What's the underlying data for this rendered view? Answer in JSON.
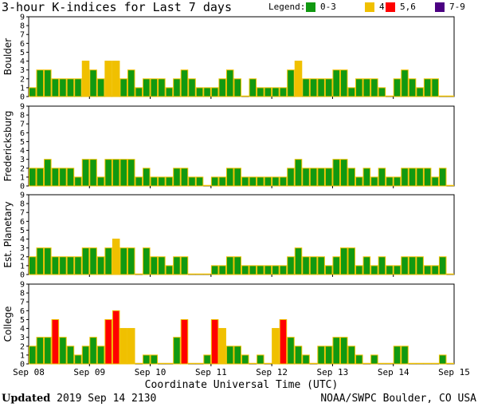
{
  "title": "3-hour K-indices for Last 7 days",
  "legend": {
    "label": "Legend:",
    "items": [
      {
        "label": "0-3",
        "color": "#119911"
      },
      {
        "label": "4",
        "color": "#f0c000"
      },
      {
        "label": "5,6",
        "color": "#ff0000"
      },
      {
        "label": "7-9",
        "color": "#4b0082"
      }
    ]
  },
  "xlabel": "Coordinate Universal Time (UTC)",
  "footer": {
    "updated_label": "Updated",
    "updated_value": "2019 Sep 14 2130",
    "source": "NOAA/SWPC Boulder, CO USA"
  },
  "chart_data": [
    {
      "type": "bar",
      "ylabel": "Boulder",
      "ylim": [
        0,
        9
      ],
      "yticks": [
        "0",
        "1",
        "2",
        "3",
        "4",
        "5",
        "6",
        "7",
        "8",
        "9"
      ],
      "x_tick_labels": [
        "Sep 08",
        "Sep 09",
        "Sep 10",
        "Sep 11",
        "Sep 12",
        "Sep 13",
        "Sep 14",
        "Sep 15"
      ],
      "values": [
        1,
        3,
        3,
        2,
        2,
        2,
        2,
        4,
        3,
        2,
        4,
        4,
        2,
        3,
        1,
        2,
        2,
        2,
        1,
        2,
        3,
        2,
        1,
        1,
        1,
        2,
        3,
        2,
        0,
        2,
        1,
        1,
        1,
        1,
        3,
        4,
        2,
        2,
        2,
        2,
        3,
        3,
        1,
        2,
        2,
        2,
        1,
        0,
        2,
        3,
        2,
        1,
        2,
        2,
        0,
        0
      ]
    },
    {
      "type": "bar",
      "ylabel": "Fredericksburg",
      "ylim": [
        0,
        9
      ],
      "yticks": [
        "0",
        "1",
        "2",
        "3",
        "4",
        "5",
        "6",
        "7",
        "8",
        "9"
      ],
      "x_tick_labels": [
        "Sep 08",
        "Sep 09",
        "Sep 10",
        "Sep 11",
        "Sep 12",
        "Sep 13",
        "Sep 14",
        "Sep 15"
      ],
      "values": [
        2,
        2,
        3,
        2,
        2,
        2,
        1,
        3,
        3,
        1,
        3,
        3,
        3,
        3,
        1,
        2,
        1,
        1,
        1,
        2,
        2,
        1,
        1,
        0,
        1,
        1,
        2,
        2,
        1,
        1,
        1,
        1,
        1,
        1,
        2,
        3,
        2,
        2,
        2,
        2,
        3,
        3,
        2,
        1,
        2,
        1,
        2,
        1,
        1,
        2,
        2,
        2,
        2,
        1,
        2,
        0
      ]
    },
    {
      "type": "bar",
      "ylabel": "Est. Planetary",
      "ylim": [
        0,
        9
      ],
      "yticks": [
        "0",
        "1",
        "2",
        "3",
        "4",
        "5",
        "6",
        "7",
        "8",
        "9"
      ],
      "x_tick_labels": [
        "Sep 08",
        "Sep 09",
        "Sep 10",
        "Sep 11",
        "Sep 12",
        "Sep 13",
        "Sep 14",
        "Sep 15"
      ],
      "values": [
        2,
        3,
        3,
        2,
        2,
        2,
        2,
        3,
        3,
        2,
        3,
        4,
        3,
        3,
        0,
        3,
        2,
        2,
        1,
        2,
        2,
        0,
        0,
        0,
        1,
        1,
        2,
        2,
        1,
        1,
        1,
        1,
        1,
        1,
        2,
        3,
        2,
        2,
        2,
        1,
        2,
        3,
        3,
        1,
        2,
        1,
        2,
        1,
        1,
        2,
        2,
        2,
        1,
        1,
        2,
        0
      ]
    },
    {
      "type": "bar",
      "ylabel": "College",
      "ylim": [
        0,
        9
      ],
      "yticks": [
        "0",
        "1",
        "2",
        "3",
        "4",
        "5",
        "6",
        "7",
        "8",
        "9"
      ],
      "x_tick_labels": [
        "Sep 08",
        "Sep 09",
        "Sep 10",
        "Sep 11",
        "Sep 12",
        "Sep 13",
        "Sep 14",
        "Sep 15"
      ],
      "values": [
        2,
        3,
        3,
        5,
        3,
        2,
        1,
        2,
        3,
        2,
        5,
        6,
        4,
        4,
        0,
        1,
        1,
        0,
        0,
        3,
        5,
        0,
        0,
        1,
        5,
        4,
        2,
        2,
        1,
        0,
        1,
        0,
        4,
        5,
        3,
        2,
        1,
        0,
        2,
        2,
        3,
        3,
        2,
        1,
        0,
        1,
        0,
        0,
        2,
        2,
        0,
        0,
        0,
        0,
        1,
        0
      ]
    }
  ]
}
